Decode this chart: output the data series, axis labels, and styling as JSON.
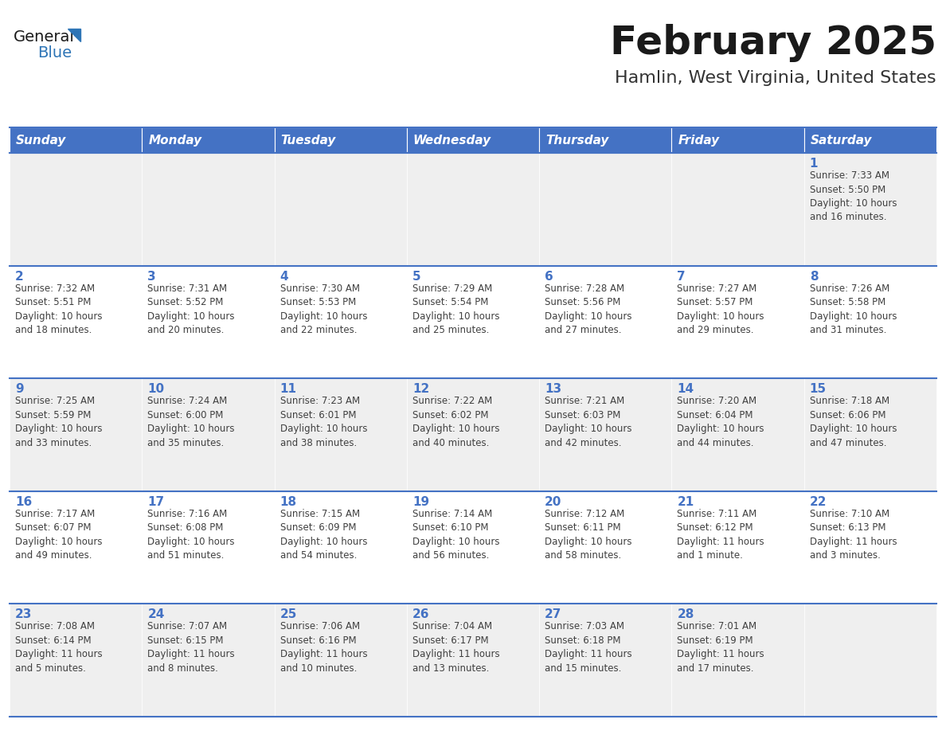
{
  "title": "February 2025",
  "subtitle": "Hamlin, West Virginia, United States",
  "header_bg_color": "#4472C4",
  "header_text_color": "#FFFFFF",
  "header_days": [
    "Sunday",
    "Monday",
    "Tuesday",
    "Wednesday",
    "Thursday",
    "Friday",
    "Saturday"
  ],
  "row_colors": [
    "#EFEFEF",
    "#FFFFFF"
  ],
  "divider_color": "#4472C4",
  "day_number_color": "#4472C4",
  "cell_text_color": "#404040",
  "background_color": "#FFFFFF",
  "title_color": "#1a1a1a",
  "subtitle_color": "#333333",
  "logo_general_color": "#1a1a1a",
  "logo_blue_color": "#2E75B6",
  "logo_triangle_color": "#2E75B6",
  "calendar_data": [
    [
      {
        "day": null,
        "info": null
      },
      {
        "day": null,
        "info": null
      },
      {
        "day": null,
        "info": null
      },
      {
        "day": null,
        "info": null
      },
      {
        "day": null,
        "info": null
      },
      {
        "day": null,
        "info": null
      },
      {
        "day": 1,
        "info": "Sunrise: 7:33 AM\nSunset: 5:50 PM\nDaylight: 10 hours\nand 16 minutes."
      }
    ],
    [
      {
        "day": 2,
        "info": "Sunrise: 7:32 AM\nSunset: 5:51 PM\nDaylight: 10 hours\nand 18 minutes."
      },
      {
        "day": 3,
        "info": "Sunrise: 7:31 AM\nSunset: 5:52 PM\nDaylight: 10 hours\nand 20 minutes."
      },
      {
        "day": 4,
        "info": "Sunrise: 7:30 AM\nSunset: 5:53 PM\nDaylight: 10 hours\nand 22 minutes."
      },
      {
        "day": 5,
        "info": "Sunrise: 7:29 AM\nSunset: 5:54 PM\nDaylight: 10 hours\nand 25 minutes."
      },
      {
        "day": 6,
        "info": "Sunrise: 7:28 AM\nSunset: 5:56 PM\nDaylight: 10 hours\nand 27 minutes."
      },
      {
        "day": 7,
        "info": "Sunrise: 7:27 AM\nSunset: 5:57 PM\nDaylight: 10 hours\nand 29 minutes."
      },
      {
        "day": 8,
        "info": "Sunrise: 7:26 AM\nSunset: 5:58 PM\nDaylight: 10 hours\nand 31 minutes."
      }
    ],
    [
      {
        "day": 9,
        "info": "Sunrise: 7:25 AM\nSunset: 5:59 PM\nDaylight: 10 hours\nand 33 minutes."
      },
      {
        "day": 10,
        "info": "Sunrise: 7:24 AM\nSunset: 6:00 PM\nDaylight: 10 hours\nand 35 minutes."
      },
      {
        "day": 11,
        "info": "Sunrise: 7:23 AM\nSunset: 6:01 PM\nDaylight: 10 hours\nand 38 minutes."
      },
      {
        "day": 12,
        "info": "Sunrise: 7:22 AM\nSunset: 6:02 PM\nDaylight: 10 hours\nand 40 minutes."
      },
      {
        "day": 13,
        "info": "Sunrise: 7:21 AM\nSunset: 6:03 PM\nDaylight: 10 hours\nand 42 minutes."
      },
      {
        "day": 14,
        "info": "Sunrise: 7:20 AM\nSunset: 6:04 PM\nDaylight: 10 hours\nand 44 minutes."
      },
      {
        "day": 15,
        "info": "Sunrise: 7:18 AM\nSunset: 6:06 PM\nDaylight: 10 hours\nand 47 minutes."
      }
    ],
    [
      {
        "day": 16,
        "info": "Sunrise: 7:17 AM\nSunset: 6:07 PM\nDaylight: 10 hours\nand 49 minutes."
      },
      {
        "day": 17,
        "info": "Sunrise: 7:16 AM\nSunset: 6:08 PM\nDaylight: 10 hours\nand 51 minutes."
      },
      {
        "day": 18,
        "info": "Sunrise: 7:15 AM\nSunset: 6:09 PM\nDaylight: 10 hours\nand 54 minutes."
      },
      {
        "day": 19,
        "info": "Sunrise: 7:14 AM\nSunset: 6:10 PM\nDaylight: 10 hours\nand 56 minutes."
      },
      {
        "day": 20,
        "info": "Sunrise: 7:12 AM\nSunset: 6:11 PM\nDaylight: 10 hours\nand 58 minutes."
      },
      {
        "day": 21,
        "info": "Sunrise: 7:11 AM\nSunset: 6:12 PM\nDaylight: 11 hours\nand 1 minute."
      },
      {
        "day": 22,
        "info": "Sunrise: 7:10 AM\nSunset: 6:13 PM\nDaylight: 11 hours\nand 3 minutes."
      }
    ],
    [
      {
        "day": 23,
        "info": "Sunrise: 7:08 AM\nSunset: 6:14 PM\nDaylight: 11 hours\nand 5 minutes."
      },
      {
        "day": 24,
        "info": "Sunrise: 7:07 AM\nSunset: 6:15 PM\nDaylight: 11 hours\nand 8 minutes."
      },
      {
        "day": 25,
        "info": "Sunrise: 7:06 AM\nSunset: 6:16 PM\nDaylight: 11 hours\nand 10 minutes."
      },
      {
        "day": 26,
        "info": "Sunrise: 7:04 AM\nSunset: 6:17 PM\nDaylight: 11 hours\nand 13 minutes."
      },
      {
        "day": 27,
        "info": "Sunrise: 7:03 AM\nSunset: 6:18 PM\nDaylight: 11 hours\nand 15 minutes."
      },
      {
        "day": 28,
        "info": "Sunrise: 7:01 AM\nSunset: 6:19 PM\nDaylight: 11 hours\nand 17 minutes."
      },
      {
        "day": null,
        "info": null
      }
    ]
  ]
}
